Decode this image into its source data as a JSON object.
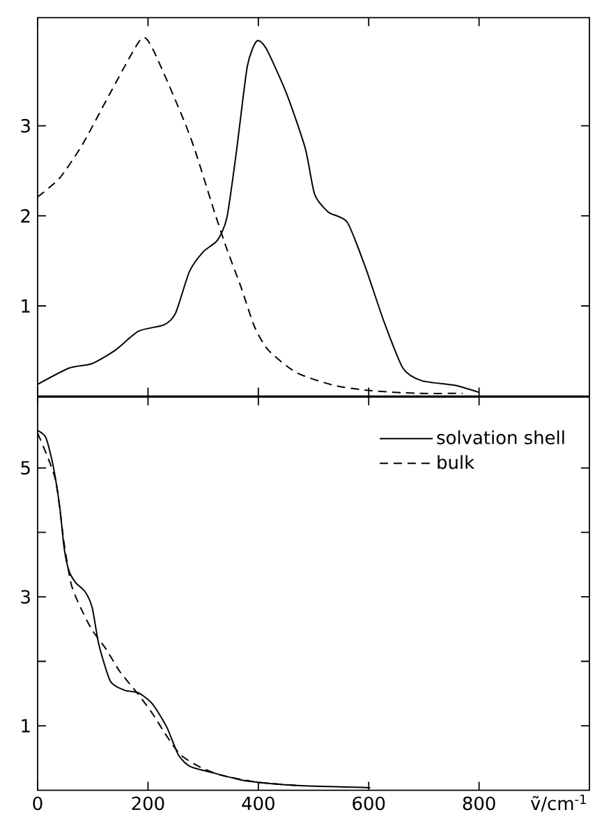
{
  "chart_data": [
    {
      "type": "line",
      "xlim": [
        0,
        1000
      ],
      "xticks": [
        0,
        200,
        400,
        600,
        800
      ],
      "ylim": [
        0,
        4.2
      ],
      "yticks": [
        1,
        2,
        3
      ],
      "tick_labels": "y",
      "marker": "none",
      "legend": false,
      "series": [
        {
          "color": "#000000",
          "line_style": "solid",
          "x": [
            0,
            57,
            99,
            141,
            183,
            229,
            250,
            275,
            300,
            326,
            343,
            360,
            380,
            397,
            414,
            451,
            485,
            502,
            527,
            561,
            594,
            628,
            662,
            696,
            755,
            800
          ],
          "values": [
            0.13,
            0.31,
            0.36,
            0.51,
            0.72,
            0.79,
            0.92,
            1.38,
            1.6,
            1.73,
            1.98,
            2.7,
            3.66,
            3.94,
            3.86,
            3.36,
            2.75,
            2.24,
            2.04,
            1.93,
            1.43,
            0.82,
            0.31,
            0.17,
            0.12,
            0.04
          ]
        },
        {
          "color": "#000000",
          "line_style": "dashed",
          "x": [
            0,
            40,
            82,
            133,
            187,
            208,
            259,
            284,
            318,
            343,
            368,
            393,
            418,
            469,
            536,
            603,
            687,
            770
          ],
          "values": [
            2.21,
            2.42,
            2.8,
            3.38,
            3.96,
            3.86,
            3.15,
            2.75,
            2.09,
            1.63,
            1.22,
            0.77,
            0.51,
            0.26,
            0.12,
            0.06,
            0.03,
            0.03
          ]
        }
      ]
    },
    {
      "type": "line",
      "xlabel": "ṽ/cm$^{-1}$",
      "xlim": [
        0,
        1000
      ],
      "xticks": [
        0,
        200,
        400,
        600,
        800
      ],
      "ylim": [
        0,
        6.1
      ],
      "yticks": [
        1,
        {
          "value": 2,
          "label": null
        },
        3,
        {
          "value": 4,
          "label": null
        },
        5
      ],
      "marker": "none",
      "legend": "top right",
      "series": [
        {
          "name": "solvation shell",
          "color": "#000000",
          "line_style": "solid",
          "x": [
            0,
            15,
            28,
            40,
            48,
            57,
            69,
            86,
            99,
            111,
            132,
            158,
            183,
            208,
            234,
            255,
            276,
            318,
            368,
            402,
            477,
            603
          ],
          "values": [
            5.58,
            5.47,
            5.04,
            4.4,
            3.76,
            3.4,
            3.22,
            3.08,
            2.83,
            2.26,
            1.69,
            1.55,
            1.51,
            1.34,
            0.98,
            0.55,
            0.37,
            0.27,
            0.16,
            0.12,
            0.07,
            0.04
          ]
        },
        {
          "name": "bulk",
          "color": "#000000",
          "line_style": "dashed",
          "x": [
            0,
            32,
            48,
            61,
            78,
            99,
            124,
            149,
            183,
            208,
            234,
            259,
            292,
            334,
            402,
            477
          ],
          "values": [
            5.54,
            4.83,
            3.83,
            3.19,
            2.83,
            2.48,
            2.19,
            1.84,
            1.48,
            1.19,
            0.84,
            0.55,
            0.37,
            0.23,
            0.12,
            0.07
          ]
        }
      ]
    }
  ]
}
